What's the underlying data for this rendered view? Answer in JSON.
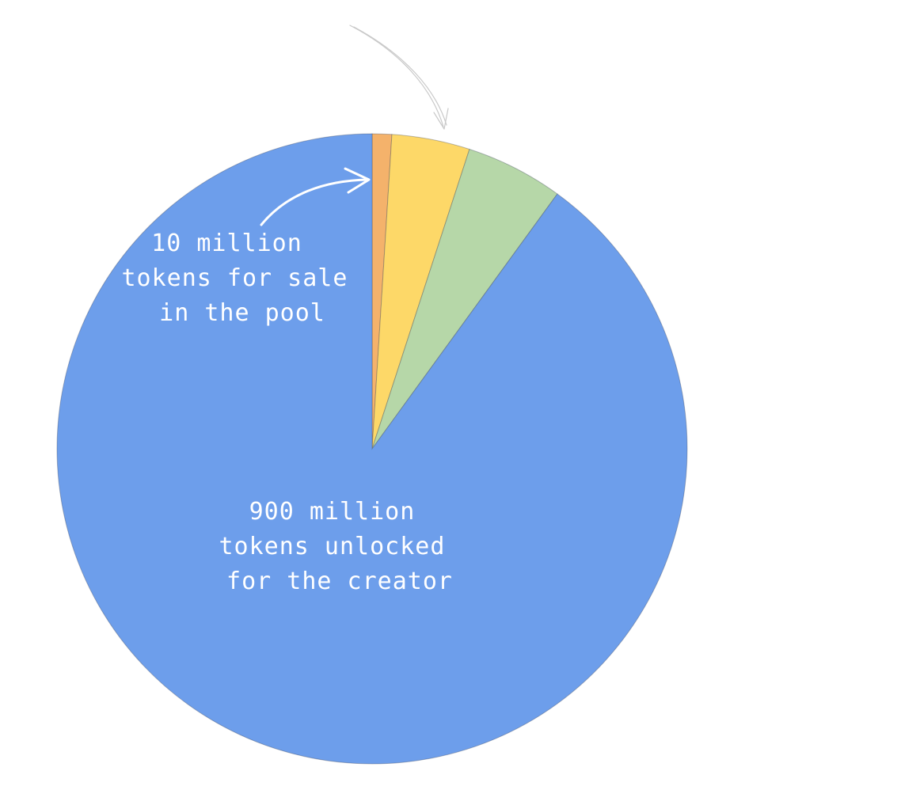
{
  "chart_data": {
    "type": "pie",
    "start_angle_deg": 0,
    "direction": "clockwise",
    "slices": [
      {
        "value": 10,
        "color": "#F4B26B"
      },
      {
        "value": 40,
        "color": "#FDD868"
      },
      {
        "value": 50,
        "color": "#B6D7A8"
      },
      {
        "value": 900,
        "color": "#6D9EEB"
      }
    ],
    "annotations": [
      {
        "lines": [
          "10 million",
          "tokens for sale",
          "in the pool"
        ]
      },
      {
        "lines": [
          "900 million",
          "tokens unlocked",
          "for the creator"
        ]
      }
    ]
  }
}
